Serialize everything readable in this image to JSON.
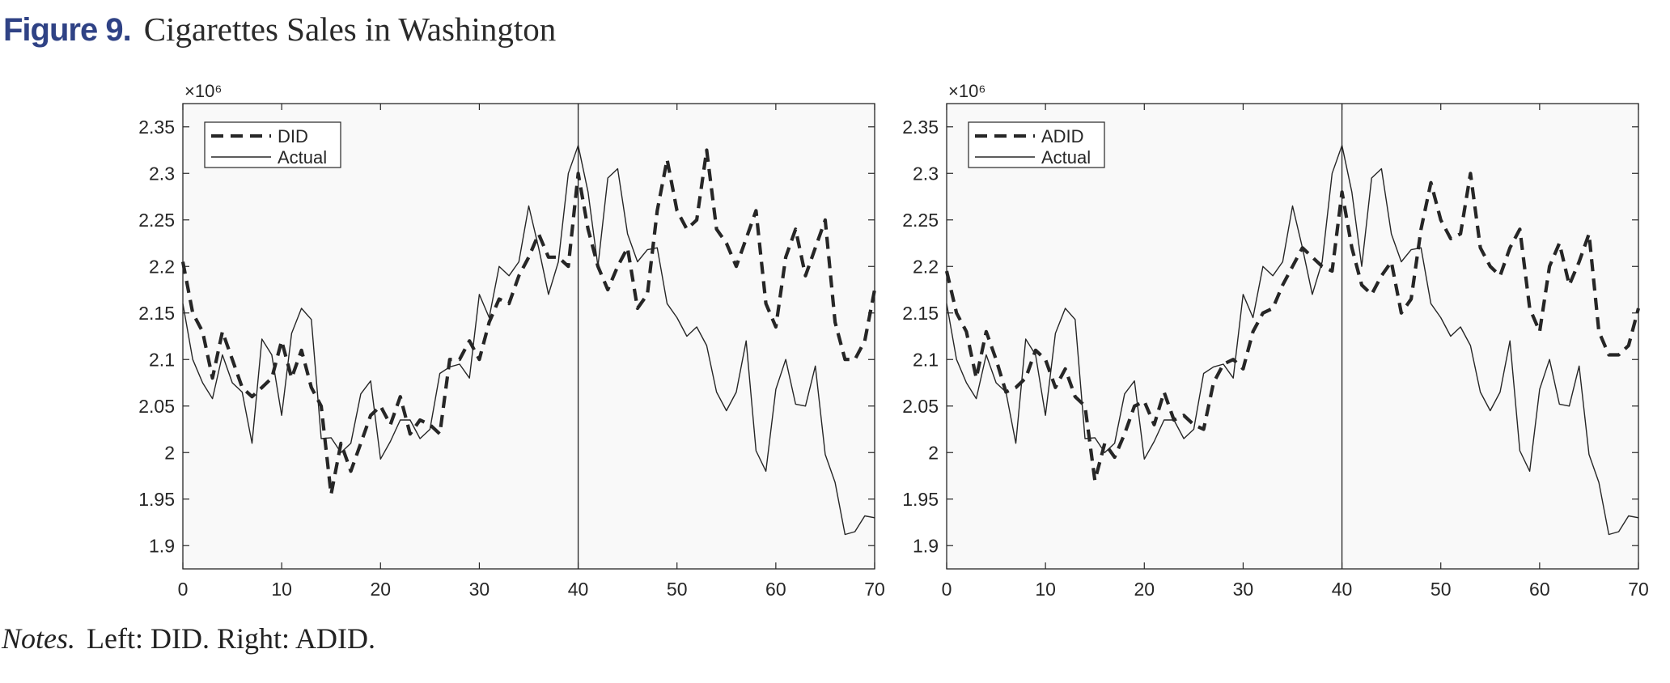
{
  "figure": {
    "label": "Figure 9.",
    "title": "Cigarettes Sales in Washington"
  },
  "notes": {
    "label": "Notes.",
    "text": "Left: DID. Right: ADID."
  },
  "colors": {
    "title_label": "#2f4285",
    "series_line": "#262626",
    "plot_background": "#f9f9f9"
  },
  "chart_data": [
    {
      "type": "line",
      "title": "",
      "xlabel": "",
      "ylabel": "",
      "y_exponent_label": "×10⁶",
      "xlim": [
        0,
        70
      ],
      "ylim": [
        1.875,
        2.375
      ],
      "xticks": [
        0,
        10,
        20,
        30,
        40,
        50,
        60,
        70
      ],
      "yticks": [
        1.9,
        1.95,
        2,
        2.05,
        2.1,
        2.15,
        2.2,
        2.25,
        2.3,
        2.35
      ],
      "ytick_labels": [
        "1.9",
        "1.95",
        "2",
        "2.05",
        "2.1",
        "2.15",
        "2.2",
        "2.25",
        "2.3",
        "2.35"
      ],
      "vertical_line_x": 40,
      "grid": false,
      "legend_position": "top-left",
      "x": [
        0,
        1,
        2,
        3,
        4,
        5,
        6,
        7,
        8,
        9,
        10,
        11,
        12,
        13,
        14,
        15,
        16,
        17,
        18,
        19,
        20,
        21,
        22,
        23,
        24,
        25,
        26,
        27,
        28,
        29,
        30,
        31,
        32,
        33,
        34,
        35,
        36,
        37,
        38,
        39,
        40,
        41,
        42,
        43,
        44,
        45,
        46,
        47,
        48,
        49,
        50,
        51,
        52,
        53,
        54,
        55,
        56,
        57,
        58,
        59,
        60,
        61,
        62,
        63,
        64,
        65,
        66,
        67,
        68,
        69,
        70
      ],
      "series": [
        {
          "name": "DID",
          "style": "dashed",
          "values": [
            2.205,
            2.15,
            2.13,
            2.08,
            2.13,
            2.1,
            2.07,
            2.06,
            2.07,
            2.08,
            2.12,
            2.08,
            2.11,
            2.07,
            2.05,
            1.955,
            2.01,
            1.98,
            2.01,
            2.04,
            2.05,
            2.03,
            2.06,
            2.02,
            2.035,
            2.03,
            2.02,
            2.1,
            2.1,
            2.12,
            2.1,
            2.14,
            2.165,
            2.16,
            2.19,
            2.21,
            2.235,
            2.21,
            2.21,
            2.2,
            2.3,
            2.24,
            2.2,
            2.175,
            2.2,
            2.22,
            2.155,
            2.17,
            2.26,
            2.315,
            2.26,
            2.24,
            2.25,
            2.325,
            2.24,
            2.225,
            2.2,
            2.23,
            2.26,
            2.16,
            2.135,
            2.21,
            2.24,
            2.19,
            2.22,
            2.25,
            2.14,
            2.1,
            2.1,
            2.12,
            2.175
          ]
        },
        {
          "name": "Actual",
          "style": "solid",
          "values": [
            2.16,
            2.1,
            2.075,
            2.058,
            2.105,
            2.075,
            2.065,
            2.01,
            2.122,
            2.105,
            2.04,
            2.128,
            2.155,
            2.143,
            2.015,
            2.016,
            2,
            2.01,
            2.063,
            2.077,
            1.993,
            2.012,
            2.035,
            2.035,
            2.015,
            2.025,
            2.085,
            2.092,
            2.095,
            2.08,
            2.17,
            2.145,
            2.2,
            2.19,
            2.205,
            2.265,
            2.22,
            2.17,
            2.205,
            2.3,
            2.33,
            2.28,
            2.2,
            2.295,
            2.305,
            2.235,
            2.205,
            2.218,
            2.22,
            2.16,
            2.145,
            2.125,
            2.135,
            2.115,
            2.065,
            2.045,
            2.065,
            2.12,
            2.002,
            1.98,
            2.068,
            2.1,
            2.052,
            2.05,
            2.093,
            1.998,
            1.968,
            1.912,
            1.915,
            1.932,
            1.93
          ]
        }
      ]
    },
    {
      "type": "line",
      "title": "",
      "xlabel": "",
      "ylabel": "",
      "y_exponent_label": "×10⁶",
      "xlim": [
        0,
        70
      ],
      "ylim": [
        1.875,
        2.375
      ],
      "xticks": [
        0,
        10,
        20,
        30,
        40,
        50,
        60,
        70
      ],
      "yticks": [
        1.9,
        1.95,
        2,
        2.05,
        2.1,
        2.15,
        2.2,
        2.25,
        2.3,
        2.35
      ],
      "ytick_labels": [
        "1.9",
        "1.95",
        "2",
        "2.05",
        "2.1",
        "2.15",
        "2.2",
        "2.25",
        "2.3",
        "2.35"
      ],
      "vertical_line_x": 40,
      "grid": false,
      "legend_position": "top-left",
      "x": [
        0,
        1,
        2,
        3,
        4,
        5,
        6,
        7,
        8,
        9,
        10,
        11,
        12,
        13,
        14,
        15,
        16,
        17,
        18,
        19,
        20,
        21,
        22,
        23,
        24,
        25,
        26,
        27,
        28,
        29,
        30,
        31,
        32,
        33,
        34,
        35,
        36,
        37,
        38,
        39,
        40,
        41,
        42,
        43,
        44,
        45,
        46,
        47,
        48,
        49,
        50,
        51,
        52,
        53,
        54,
        55,
        56,
        57,
        58,
        59,
        60,
        61,
        62,
        63,
        64,
        65,
        66,
        67,
        68,
        69,
        70
      ],
      "series": [
        {
          "name": "ADID",
          "style": "dashed",
          "values": [
            2.195,
            2.15,
            2.13,
            2.08,
            2.13,
            2.1,
            2.065,
            2.07,
            2.08,
            2.11,
            2.1,
            2.07,
            2.09,
            2.06,
            2.05,
            1.97,
            2.01,
            1.995,
            2.02,
            2.05,
            2.055,
            2.03,
            2.065,
            2.035,
            2.04,
            2.03,
            2.025,
            2.075,
            2.095,
            2.1,
            2.09,
            2.13,
            2.15,
            2.155,
            2.18,
            2.2,
            2.22,
            2.21,
            2.2,
            2.195,
            2.28,
            2.22,
            2.18,
            2.17,
            2.19,
            2.205,
            2.15,
            2.165,
            2.24,
            2.29,
            2.25,
            2.23,
            2.235,
            2.3,
            2.22,
            2.2,
            2.19,
            2.22,
            2.24,
            2.155,
            2.13,
            2.2,
            2.225,
            2.18,
            2.205,
            2.235,
            2.13,
            2.105,
            2.105,
            2.115,
            2.155
          ]
        },
        {
          "name": "Actual",
          "style": "solid",
          "values": [
            2.16,
            2.1,
            2.075,
            2.058,
            2.105,
            2.075,
            2.065,
            2.01,
            2.122,
            2.105,
            2.04,
            2.128,
            2.155,
            2.143,
            2.015,
            2.016,
            2,
            2.01,
            2.063,
            2.077,
            1.993,
            2.012,
            2.035,
            2.035,
            2.015,
            2.025,
            2.085,
            2.092,
            2.095,
            2.08,
            2.17,
            2.145,
            2.2,
            2.19,
            2.205,
            2.265,
            2.22,
            2.17,
            2.205,
            2.3,
            2.33,
            2.28,
            2.2,
            2.295,
            2.305,
            2.235,
            2.205,
            2.218,
            2.22,
            2.16,
            2.145,
            2.125,
            2.135,
            2.115,
            2.065,
            2.045,
            2.065,
            2.12,
            2.002,
            1.98,
            2.068,
            2.1,
            2.052,
            2.05,
            2.093,
            1.998,
            1.968,
            1.912,
            1.915,
            1.932,
            1.93
          ]
        }
      ]
    }
  ]
}
